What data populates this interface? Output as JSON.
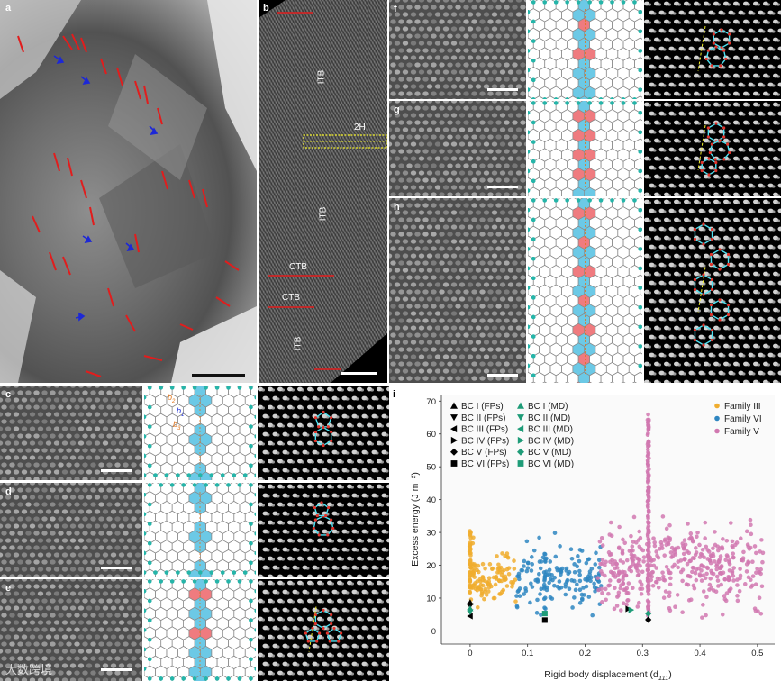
{
  "panels": {
    "a": {
      "label": "a"
    },
    "b": {
      "label": "b",
      "labels": {
        "itb1": "ITB",
        "h2": "2H",
        "itb2": "ITB",
        "ctb1": "CTB",
        "ctb2": "CTB",
        "itb3": "ITB"
      }
    },
    "c": {
      "label": "c",
      "burgers": {
        "b2": "b",
        "b2s": "2",
        "b1": "b",
        "b1s": "1",
        "b3": "b",
        "b3s": "3"
      }
    },
    "d": {
      "label": "d"
    },
    "e": {
      "label": "e"
    },
    "f": {
      "label": "f"
    },
    "g": {
      "label": "g"
    },
    "h": {
      "label": "h"
    },
    "i": {
      "label": "i"
    }
  },
  "watermark": "大数跨境",
  "colors": {
    "cyan_fill": "#6cc9e6",
    "red_fill": "#ef7b7f",
    "atom": "#25b5a9",
    "family3": "#f0ad2e",
    "family6": "#2e86c1",
    "family5": "#d178b0"
  },
  "chart_data": {
    "type": "scatter",
    "xlabel": "Rigid body displacement (d",
    "xlabel_sub": "111",
    "xlabel_end": ")",
    "ylabel": "Excess energy (J m⁻²)",
    "xlim": [
      -0.05,
      0.53
    ],
    "ylim": [
      -4,
      72
    ],
    "x_ticks": [
      "0",
      "0.1",
      "0.2",
      "0.3",
      "0.4",
      "0.5"
    ],
    "y_ticks": [
      "0",
      "10",
      "20",
      "30",
      "40",
      "50",
      "60",
      "70"
    ],
    "legend_markers": [
      {
        "label": "BC I (FPs)",
        "marker": "triangle-up",
        "color": "#000000"
      },
      {
        "label": "BC II (FPs)",
        "marker": "triangle-down",
        "color": "#000000"
      },
      {
        "label": "BC III (FPs)",
        "marker": "triangle-left",
        "color": "#000000"
      },
      {
        "label": "BC IV (FPs)",
        "marker": "triangle-right",
        "color": "#000000"
      },
      {
        "label": "BC V (FPs)",
        "marker": "diamond",
        "color": "#000000"
      },
      {
        "label": "BC VI (FPs)",
        "marker": "square",
        "color": "#000000"
      },
      {
        "label": "BC I (MD)",
        "marker": "triangle-up",
        "color": "#1e9c78"
      },
      {
        "label": "BC II (MD)",
        "marker": "triangle-down",
        "color": "#1e9c78"
      },
      {
        "label": "BC III (MD)",
        "marker": "triangle-left",
        "color": "#1e9c78"
      },
      {
        "label": "BC IV (MD)",
        "marker": "triangle-right",
        "color": "#1e9c78"
      },
      {
        "label": "BC V (MD)",
        "marker": "diamond",
        "color": "#1e9c78"
      },
      {
        "label": "BC VI (MD)",
        "marker": "square",
        "color": "#1e9c78"
      }
    ],
    "legend_families": [
      {
        "label": "Family III",
        "color": "#f0ad2e"
      },
      {
        "label": "Family VI",
        "color": "#2e86c1"
      },
      {
        "label": "Family V",
        "color": "#d178b0"
      }
    ],
    "special_points": [
      {
        "x": 0.0,
        "y": 8.7,
        "marker": "triangle-up",
        "color": "#000000"
      },
      {
        "x": 0.0,
        "y": 7.7,
        "marker": "triangle-down",
        "color": "#000000"
      },
      {
        "x": 0.0,
        "y": 4.5,
        "marker": "triangle-left",
        "color": "#000000"
      },
      {
        "x": 0.0,
        "y": 6.8,
        "marker": "triangle-up",
        "color": "#1e9c78"
      },
      {
        "x": 0.0,
        "y": 5.8,
        "marker": "triangle-down",
        "color": "#1e9c78"
      },
      {
        "x": 0.13,
        "y": 3.3,
        "marker": "square",
        "color": "#000000"
      },
      {
        "x": 0.13,
        "y": 5.3,
        "marker": "square",
        "color": "#1e9c78"
      },
      {
        "x": 0.275,
        "y": 6.7,
        "marker": "triangle-right",
        "color": "#000000"
      },
      {
        "x": 0.28,
        "y": 6.4,
        "marker": "triangle-right",
        "color": "#1e9c78"
      },
      {
        "x": 0.31,
        "y": 3.4,
        "marker": "diamond",
        "color": "#000000"
      },
      {
        "x": 0.31,
        "y": 5.3,
        "marker": "diamond",
        "color": "#1e9c78"
      }
    ],
    "families": [
      {
        "name": "Family III",
        "color": "#f0ad2e",
        "seed": 11,
        "n": 110,
        "x_range": [
          0.0,
          0.08
        ],
        "y_mean": 16,
        "y_sd": 3.5,
        "line_x": 0.0,
        "line_n": 45,
        "line_y": [
          6,
          31
        ]
      },
      {
        "name": "Family VI",
        "color": "#2e86c1",
        "seed": 29,
        "n": 150,
        "x_range": [
          0.08,
          0.23
        ],
        "y_mean": 16.5,
        "y_sd": 4.5,
        "line_x": 0.13,
        "line_n": 15,
        "line_y": [
          4,
          26
        ]
      },
      {
        "name": "Family V",
        "color": "#d178b0",
        "seed": 53,
        "n": 430,
        "x_range": [
          0.22,
          0.51
        ],
        "y_mean": 20,
        "y_sd": 6,
        "line_x": 0.31,
        "line_n": 140,
        "line_y": [
          4,
          66
        ]
      }
    ]
  }
}
